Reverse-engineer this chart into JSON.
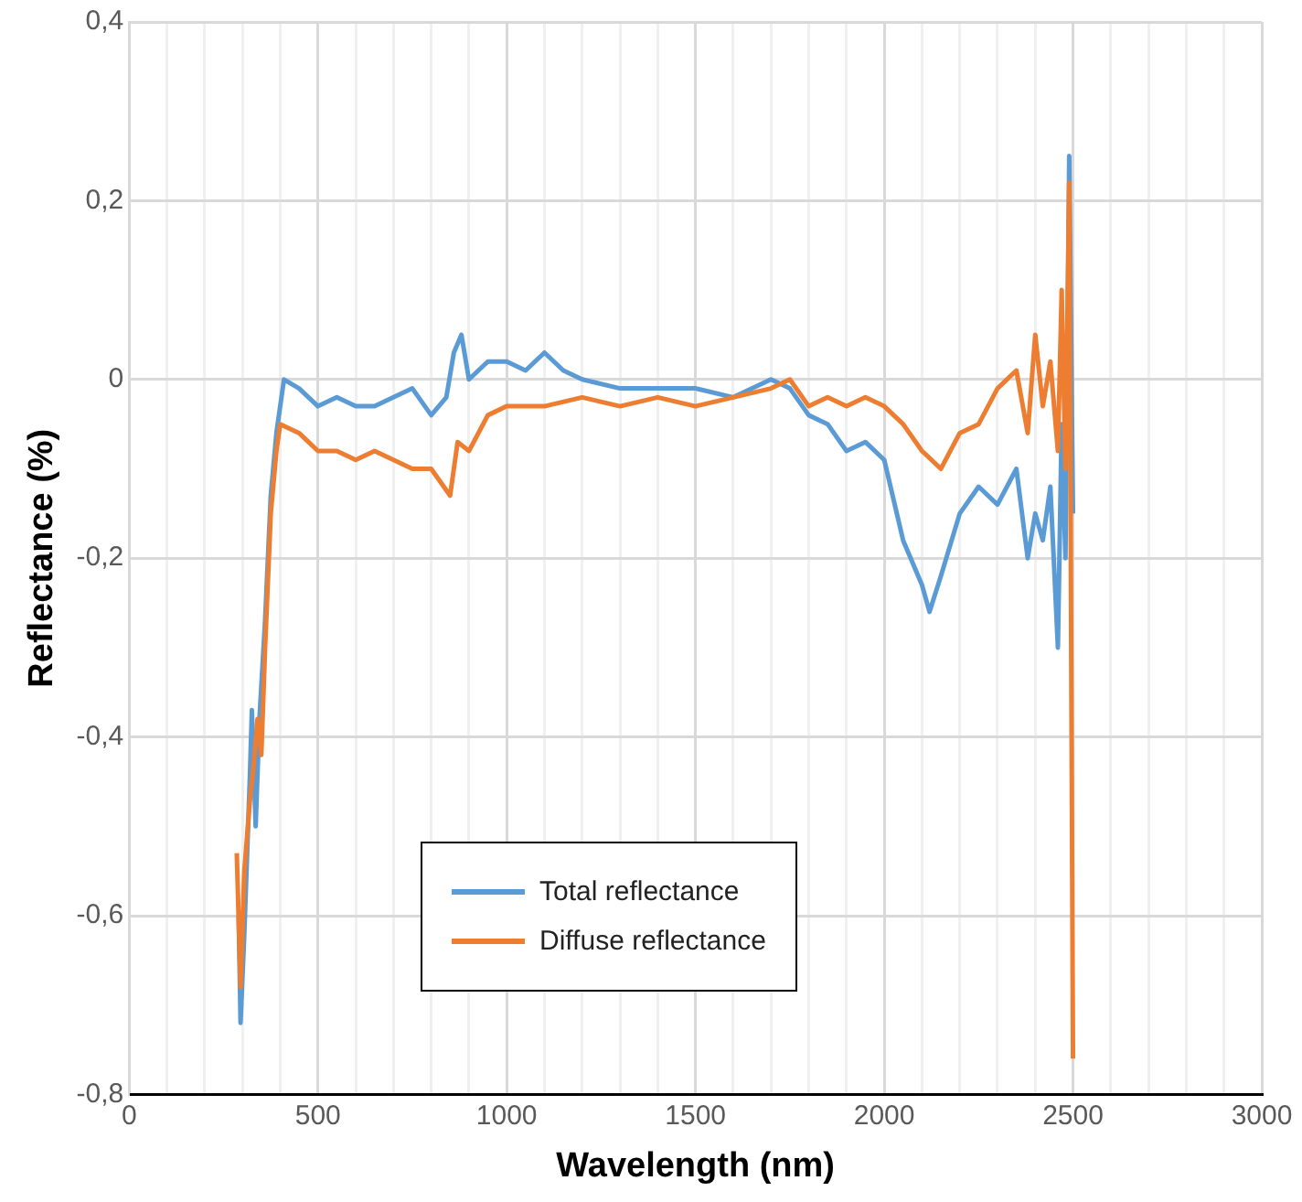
{
  "chart_data": {
    "type": "line",
    "xlabel": "Wavelength (nm)",
    "ylabel": "Reflectance (%)",
    "xlim": [
      0,
      3000
    ],
    "xticks": [
      0,
      {
        "value": 100,
        "label": null
      },
      {
        "value": 200,
        "label": null
      },
      {
        "value": 300,
        "label": null
      },
      {
        "value": 400,
        "label": null
      },
      500,
      {
        "value": 600,
        "label": null
      },
      {
        "value": 700,
        "label": null
      },
      {
        "value": 800,
        "label": null
      },
      {
        "value": 900,
        "label": null
      },
      1000,
      {
        "value": 1100,
        "label": null
      },
      {
        "value": 1200,
        "label": null
      },
      {
        "value": 1300,
        "label": null
      },
      {
        "value": 1400,
        "label": null
      },
      1500,
      {
        "value": 1600,
        "label": null
      },
      {
        "value": 1700,
        "label": null
      },
      {
        "value": 1800,
        "label": null
      },
      {
        "value": 1900,
        "label": null
      },
      2000,
      {
        "value": 2100,
        "label": null
      },
      {
        "value": 2200,
        "label": null
      },
      {
        "value": 2300,
        "label": null
      },
      {
        "value": 2400,
        "label": null
      },
      2500,
      {
        "value": 2600,
        "label": null
      },
      {
        "value": 2700,
        "label": null
      },
      {
        "value": 2800,
        "label": null
      },
      {
        "value": 2900,
        "label": null
      },
      3000
    ],
    "ylim": [
      -0.8,
      0.4
    ],
    "yticks": [
      {
        "value": -0.8,
        "label": "-0,8"
      },
      {
        "value": -0.6,
        "label": "-0,6"
      },
      {
        "value": -0.4,
        "label": "-0,4"
      },
      {
        "value": -0.2,
        "label": "-0,2"
      },
      {
        "value": 0,
        "label": "0"
      },
      {
        "value": 0.2,
        "label": "0,2"
      },
      {
        "value": 0.4,
        "label": "0,4"
      }
    ],
    "grid": true,
    "legend": "bottom",
    "marker": "none",
    "line_style": "solid",
    "series": [
      {
        "name": "Total reflectance",
        "color": "#5b9bd5",
        "x": [
          290,
          295,
          305,
          320,
          325,
          335,
          345,
          360,
          375,
          390,
          400,
          410,
          450,
          500,
          550,
          600,
          650,
          700,
          750,
          800,
          840,
          860,
          880,
          900,
          950,
          1000,
          1050,
          1100,
          1150,
          1200,
          1300,
          1400,
          1500,
          1600,
          1700,
          1750,
          1800,
          1850,
          1900,
          1950,
          2000,
          2050,
          2100,
          2120,
          2150,
          2200,
          2250,
          2300,
          2350,
          2380,
          2400,
          2420,
          2440,
          2460,
          2470,
          2480,
          2490,
          2500
        ],
        "values": [
          -0.6,
          -0.72,
          -0.62,
          -0.44,
          -0.37,
          -0.5,
          -0.38,
          -0.27,
          -0.13,
          -0.06,
          -0.03,
          0,
          -0.01,
          -0.03,
          -0.02,
          -0.03,
          -0.03,
          -0.02,
          -0.01,
          -0.04,
          -0.02,
          0.03,
          0.05,
          0,
          0.02,
          0.02,
          0.01,
          0.03,
          0.01,
          0,
          -0.01,
          -0.01,
          -0.01,
          -0.02,
          0,
          -0.01,
          -0.04,
          -0.05,
          -0.08,
          -0.07,
          -0.09,
          -0.18,
          -0.23,
          -0.26,
          -0.22,
          -0.15,
          -0.12,
          -0.14,
          -0.1,
          -0.2,
          -0.15,
          -0.18,
          -0.12,
          -0.3,
          -0.05,
          -0.2,
          0.25,
          -0.15
        ]
      },
      {
        "name": "Diffuse reflectance",
        "color": "#ed7d31",
        "x": [
          285,
          295,
          305,
          320,
          330,
          340,
          350,
          360,
          375,
          390,
          400,
          450,
          500,
          550,
          600,
          650,
          700,
          750,
          800,
          850,
          870,
          900,
          950,
          1000,
          1100,
          1200,
          1300,
          1400,
          1500,
          1600,
          1700,
          1750,
          1800,
          1850,
          1900,
          1950,
          2000,
          2050,
          2100,
          2150,
          2200,
          2250,
          2300,
          2350,
          2380,
          2400,
          2420,
          2440,
          2460,
          2470,
          2480,
          2490,
          2495,
          2500
        ],
        "values": [
          -0.53,
          -0.68,
          -0.55,
          -0.47,
          -0.43,
          -0.38,
          -0.42,
          -0.3,
          -0.15,
          -0.08,
          -0.05,
          -0.06,
          -0.08,
          -0.08,
          -0.09,
          -0.08,
          -0.09,
          -0.1,
          -0.1,
          -0.13,
          -0.07,
          -0.08,
          -0.04,
          -0.03,
          -0.03,
          -0.02,
          -0.03,
          -0.02,
          -0.03,
          -0.02,
          -0.01,
          0,
          -0.03,
          -0.02,
          -0.03,
          -0.02,
          -0.03,
          -0.05,
          -0.08,
          -0.1,
          -0.06,
          -0.05,
          -0.01,
          0.01,
          -0.06,
          0.05,
          -0.03,
          0.02,
          -0.08,
          0.1,
          -0.1,
          0.22,
          -0.28,
          -0.76
        ]
      }
    ]
  }
}
